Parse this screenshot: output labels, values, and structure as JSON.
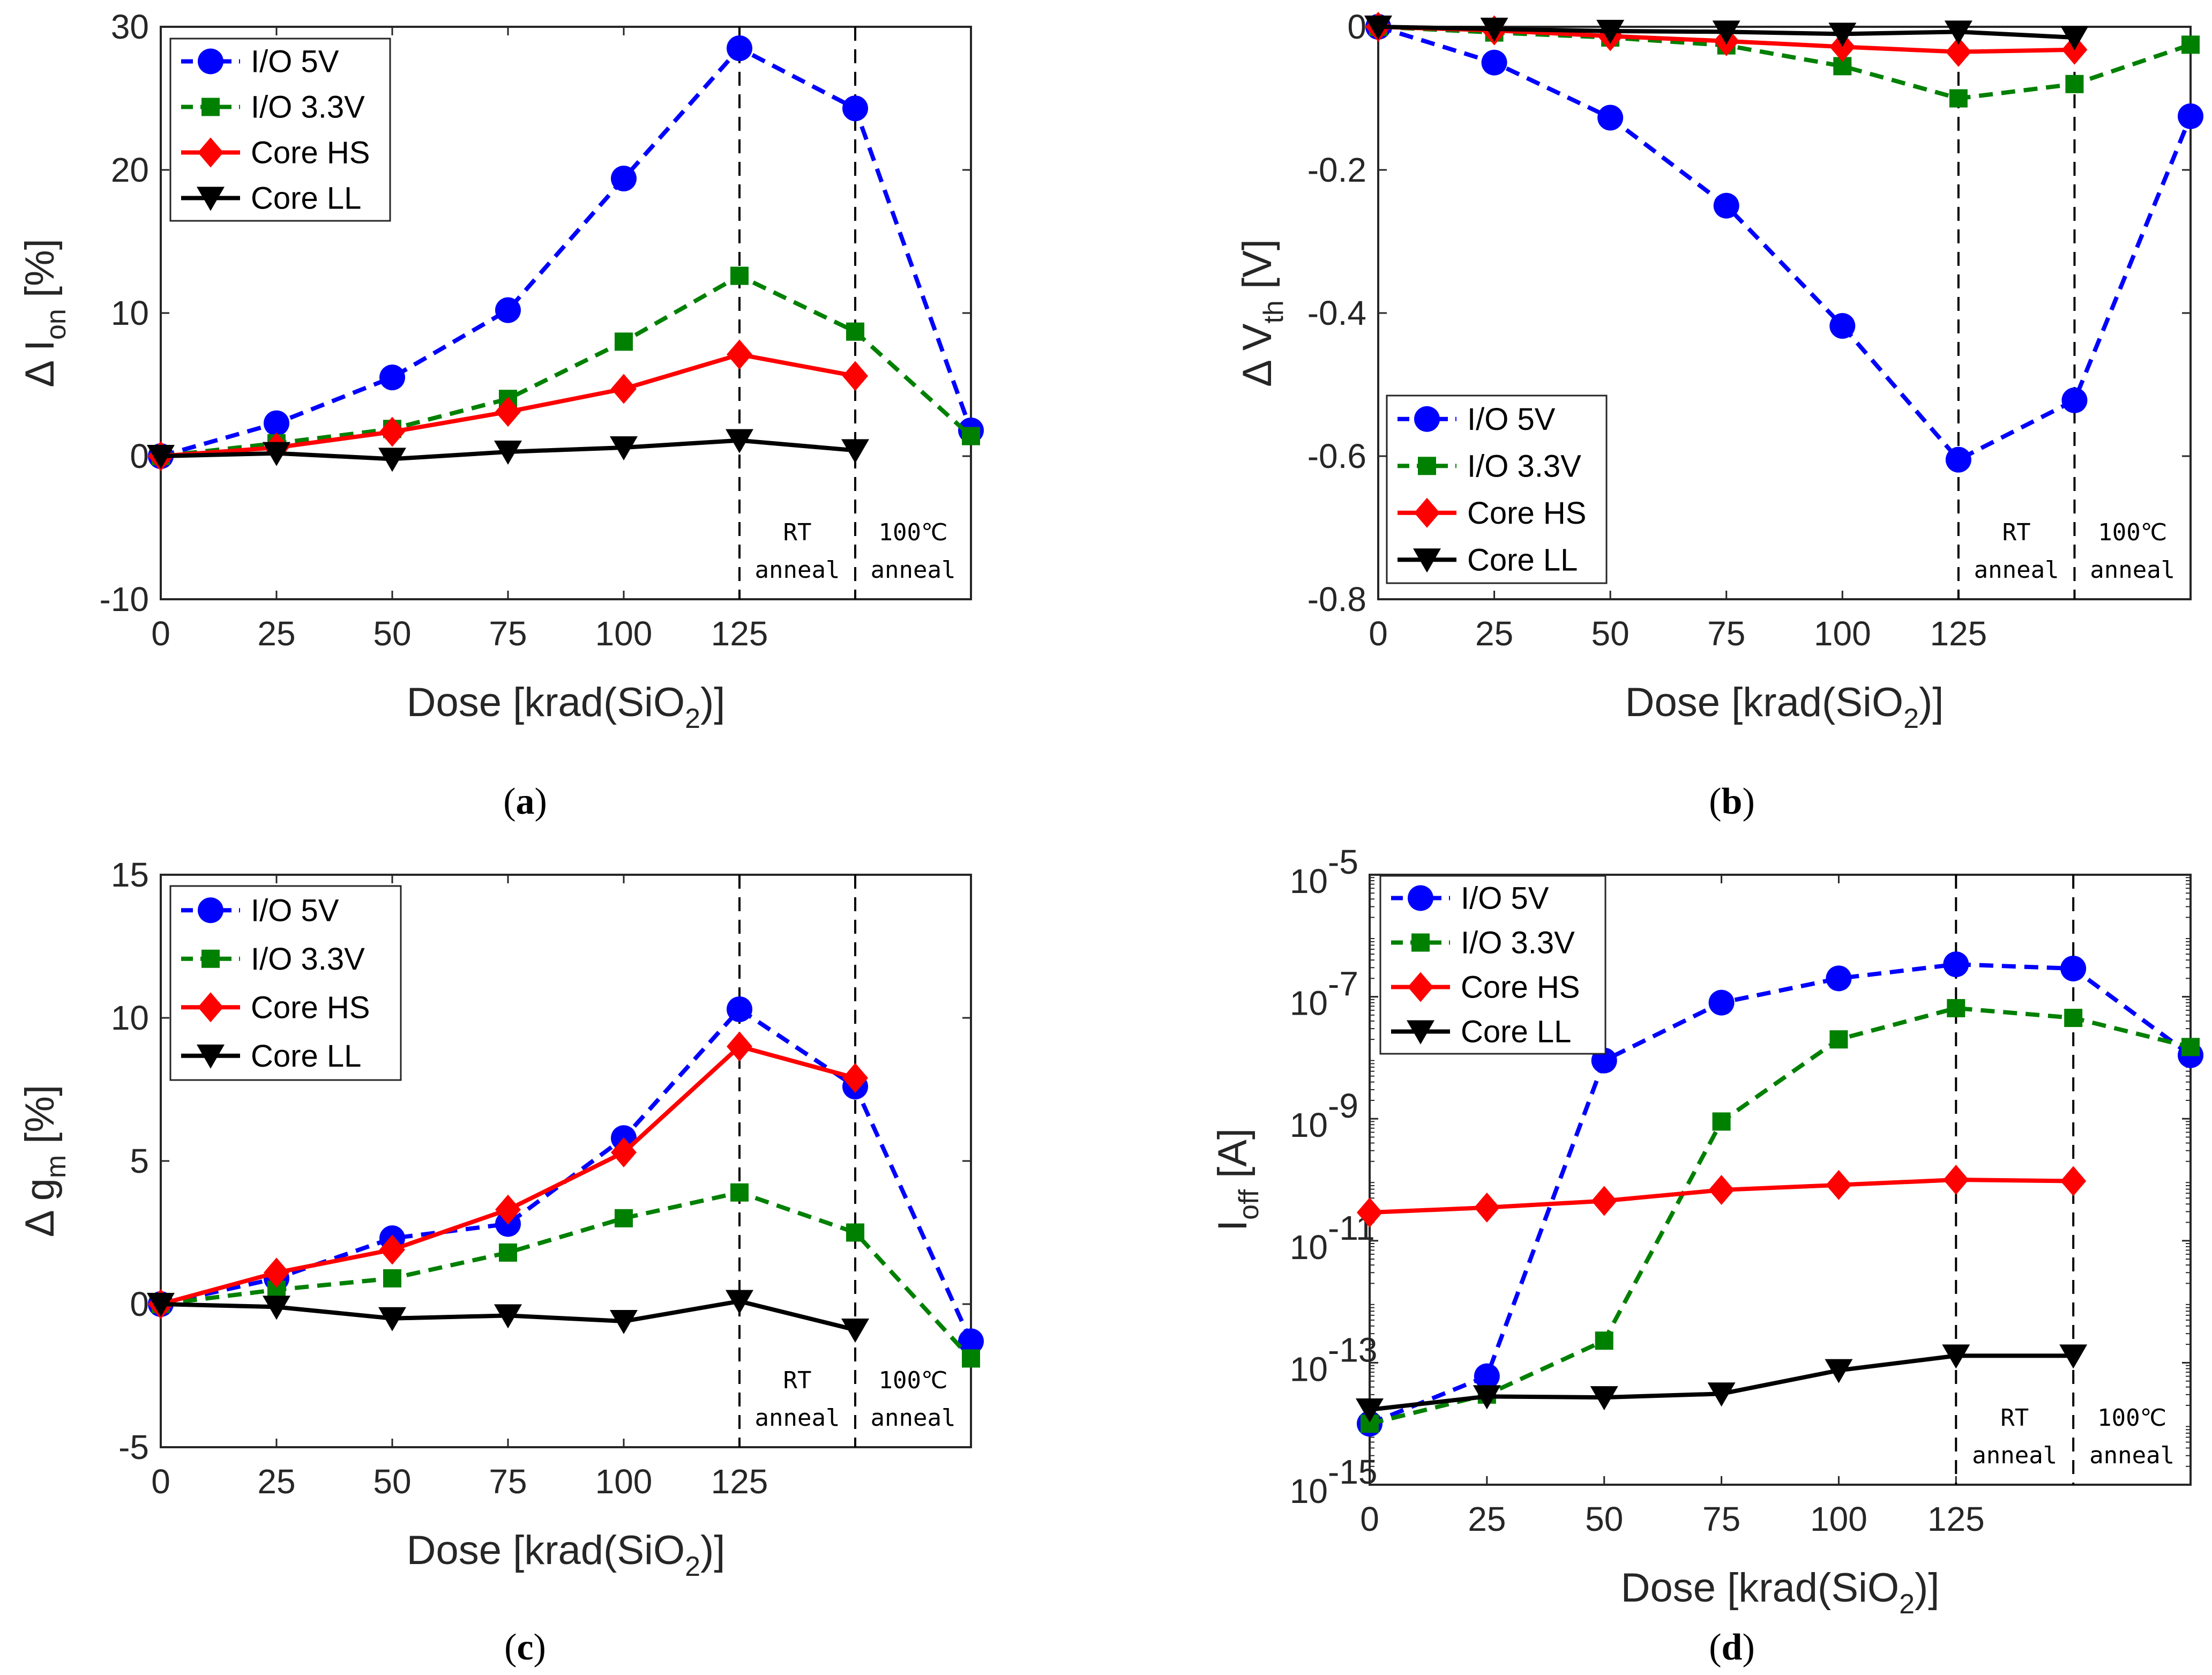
{
  "colors": {
    "io5": "#0000ff",
    "io33": "#008000",
    "corehs": "#ff0000",
    "corell": "#000000",
    "axis": "#262626"
  },
  "chart_data": [
    {
      "type": "line",
      "caption_letter": "a",
      "xlabel": "Dose [krad(SiO2)]",
      "xlabel_parts": {
        "main": "Dose [krad(SiO",
        "sub": "2",
        "end": ")]"
      },
      "ylabel_parts": {
        "main": "Δ I",
        "sub": "on",
        "end": " [%]"
      },
      "x_tick_labels": [
        "0",
        "25",
        "50",
        "75",
        "100",
        "125"
      ],
      "y_tick_labels": [
        "-10",
        "0",
        "10",
        "20",
        "30"
      ],
      "ylim": [
        -10,
        30
      ],
      "annotations": [
        {
          "line1": "RT",
          "line2": "anneal"
        },
        {
          "line1": "100℃",
          "line2": "anneal"
        }
      ],
      "series": [
        {
          "name": "I/O 5V",
          "values": [
            0,
            2.3,
            5.5,
            10.2,
            19.4,
            28.5,
            24.3,
            1.8
          ]
        },
        {
          "name": "I/O 3.3V",
          "values": [
            0,
            0.9,
            1.9,
            4.0,
            8.0,
            12.6,
            8.7,
            1.4
          ]
        },
        {
          "name": "Core HS",
          "values": [
            0,
            0.6,
            1.7,
            3.1,
            4.7,
            7.1,
            5.6
          ]
        },
        {
          "name": "Core LL",
          "values": [
            0,
            0.2,
            -0.2,
            0.3,
            0.6,
            1.1,
            0.4
          ]
        }
      ]
    },
    {
      "type": "line",
      "caption_letter": "b",
      "xlabel": "Dose [krad(SiO2)]",
      "xlabel_parts": {
        "main": "Dose [krad(SiO",
        "sub": "2",
        "end": ")]"
      },
      "ylabel_parts": {
        "main": "Δ V",
        "sub": "th",
        "end": " [V]"
      },
      "x_tick_labels": [
        "0",
        "25",
        "50",
        "75",
        "100",
        "125"
      ],
      "y_tick_labels": [
        "-0.8",
        "-0.6",
        "-0.4",
        "-0.2",
        "0"
      ],
      "ylim": [
        -0.8,
        0
      ],
      "annotations": [
        {
          "line1": "RT",
          "line2": "anneal"
        },
        {
          "line1": "100℃",
          "line2": "anneal"
        }
      ],
      "series": [
        {
          "name": "I/O 5V",
          "values": [
            0,
            -0.05,
            -0.127,
            -0.25,
            -0.418,
            -0.605,
            -0.522,
            -0.125
          ]
        },
        {
          "name": "I/O 3.3V",
          "values": [
            0,
            -0.008,
            -0.015,
            -0.026,
            -0.055,
            -0.1,
            -0.08,
            -0.025
          ]
        },
        {
          "name": "Core HS",
          "values": [
            0,
            -0.005,
            -0.013,
            -0.02,
            -0.028,
            -0.035,
            -0.032
          ]
        },
        {
          "name": "Core LL",
          "values": [
            0,
            -0.003,
            -0.006,
            -0.007,
            -0.01,
            -0.007,
            -0.015
          ]
        }
      ]
    },
    {
      "type": "line",
      "caption_letter": "c",
      "xlabel": "Dose [krad(SiO2)]",
      "xlabel_parts": {
        "main": "Dose [krad(SiO",
        "sub": "2",
        "end": ")]"
      },
      "ylabel_parts": {
        "main": "Δ g",
        "sub": "m",
        "end": " [%]"
      },
      "x_tick_labels": [
        "0",
        "25",
        "50",
        "75",
        "100",
        "125"
      ],
      "y_tick_labels": [
        "-5",
        "0",
        "5",
        "10",
        "15"
      ],
      "ylim": [
        -5,
        15
      ],
      "annotations": [
        {
          "line1": "RT",
          "line2": "anneal"
        },
        {
          "line1": "100℃",
          "line2": "anneal"
        }
      ],
      "series": [
        {
          "name": "I/O 5V",
          "values": [
            0,
            0.9,
            2.3,
            2.8,
            5.8,
            10.3,
            7.6,
            -1.3
          ]
        },
        {
          "name": "I/O 3.3V",
          "values": [
            0,
            0.5,
            0.9,
            1.8,
            3.0,
            3.9,
            2.5,
            -1.9
          ]
        },
        {
          "name": "Core HS",
          "values": [
            0,
            1.1,
            1.9,
            3.3,
            5.3,
            9.0,
            7.9
          ]
        },
        {
          "name": "Core LL",
          "values": [
            0,
            -0.1,
            -0.5,
            -0.4,
            -0.6,
            0.1,
            -0.9
          ]
        }
      ]
    },
    {
      "type": "line",
      "caption_letter": "d",
      "xlabel": "Dose [krad(SiO2)]",
      "xlabel_parts": {
        "main": "Dose [krad(SiO",
        "sub": "2",
        "end": ")]"
      },
      "ylabel_parts": {
        "main": "I",
        "sub": "off",
        "end": " [A]"
      },
      "yscale": "log",
      "x_tick_labels": [
        "0",
        "25",
        "50",
        "75",
        "100",
        "125"
      ],
      "y_tick_labels": [
        {
          "base": "10",
          "exp": "-15"
        },
        {
          "base": "10",
          "exp": "-13"
        },
        {
          "base": "10",
          "exp": "-11"
        },
        {
          "base": "10",
          "exp": "-9"
        },
        {
          "base": "10",
          "exp": "-7"
        },
        {
          "base": "10",
          "exp": "-5"
        }
      ],
      "ylim_log10": [
        -15,
        -5
      ],
      "annotations": [
        {
          "line1": "RT",
          "line2": "anneal"
        },
        {
          "line1": "100℃",
          "line2": "anneal"
        }
      ],
      "series": [
        {
          "name": "I/O 5V",
          "values": [
            1e-14,
            6e-14,
            9e-09,
            8e-08,
            2e-07,
            3.4e-07,
            2.9e-07,
            1.1e-08
          ]
        },
        {
          "name": "I/O 3.3V",
          "values": [
            1e-14,
            3e-14,
            2.3e-13,
            9e-10,
            2e-08,
            6.5e-08,
            4.5e-08,
            1.5e-08
          ]
        },
        {
          "name": "Core HS",
          "values": [
            2.9e-11,
            3.5e-11,
            4.5e-11,
            6.8e-11,
            8.2e-11,
            1e-10,
            9.5e-11
          ]
        },
        {
          "name": "Core LL",
          "values": [
            1.7e-14,
            2.8e-14,
            2.7e-14,
            3.1e-14,
            7.5e-14,
            1.3e-13,
            1.3e-13
          ]
        }
      ]
    }
  ]
}
